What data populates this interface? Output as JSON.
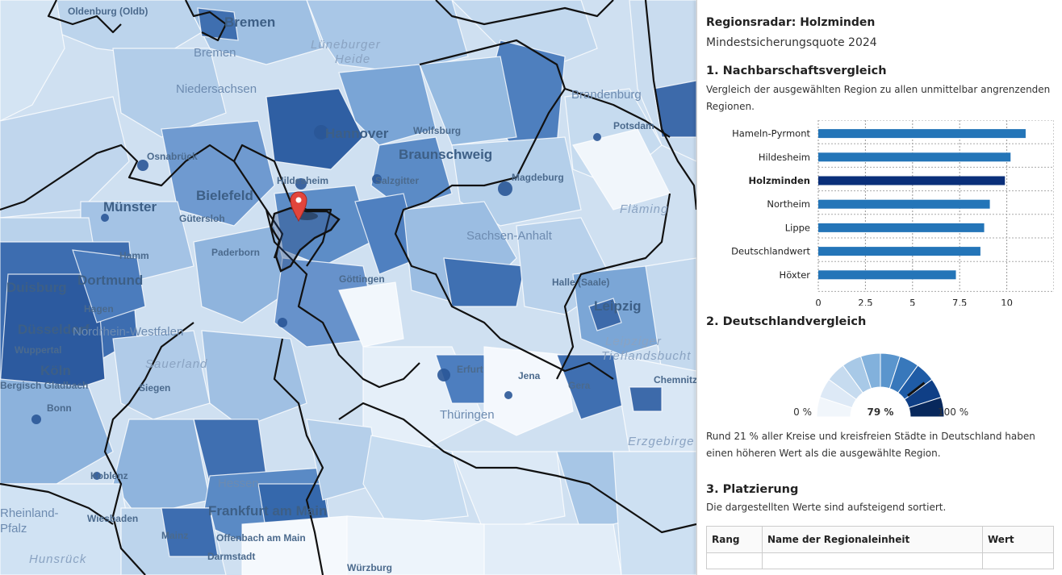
{
  "map": {
    "labels": {
      "oldenburg": "Oldenburg (Oldb)",
      "bremen_top": "Bremen",
      "bremen": "Bremen",
      "lueneburger": "Lüneburger",
      "heide": "Heide",
      "niedersachsen": "Niedersachsen",
      "brandenburg": "Brandenburg",
      "hannover": "Hannover",
      "wolfsburg": "Wolfsburg",
      "braunschweig": "Braunschweig",
      "osnabrueck": "Osnabrück",
      "hildesheim": "Hildesheim",
      "salzgitter": "Salzgitter",
      "magdeburg": "Magdeburg",
      "potsdam": "Potsdam",
      "bielefeld": "Bielefeld",
      "muenster": "Münster",
      "guetersloh": "Gütersloh",
      "flaming": "Fläming",
      "sachsen_anhalt": "Sachsen-Anhalt",
      "hamm": "Hamm",
      "paderborn": "Paderborn",
      "duisburg": "Duisburg",
      "dortmund": "Dortmund",
      "goettingen": "Göttingen",
      "halle": "Halle (Saale)",
      "hagen": "Hagen",
      "leipzig": "Leipzig",
      "duesseldorf": "Düsseldorf",
      "nrw": "Nordrhein-Westfalen",
      "wuppertal": "Wuppertal",
      "leipziger": "Leipziger",
      "tieflandsbucht": "Tieflandsbucht",
      "sauerland": "Sauerland",
      "koeln": "Köln",
      "erfurt": "Erfurt",
      "jena": "Jena",
      "bergisch": "Bergisch Gladbach",
      "siegen": "Siegen",
      "gera": "Gera",
      "chemnitz": "Chemnitz",
      "bonn": "Bonn",
      "thueringen": "Thüringen",
      "erzgebirge": "Erzgebirge",
      "koblenz": "Koblenz",
      "hessen": "Hessen",
      "frankfurt": "Frankfurt am Main",
      "wiesbaden": "Wiesbaden",
      "mainz": "Mainz",
      "offenbach": "Offenbach am Main",
      "rheinland": "Rheinland-",
      "pfalz": "Pfalz",
      "darmstadt": "Darmstadt",
      "hunsrueck": "Hunsrück",
      "wuerzburg": "Würzburg"
    }
  },
  "panel": {
    "title": "Regionsradar: Holzminden",
    "subtitle": "Mindestsicherungsquote 2024",
    "section1": {
      "heading": "1. Nachbarschaftsvergleich",
      "description": "Vergleich der ausgewählten Region zu allen unmittelbar angrenzenden Regionen."
    },
    "section2": {
      "heading": "2. Deutschlandvergleich",
      "description": "Rund 21 % aller Kreise und kreisfreien Städte in Deutschland haben einen höheren Wert als die ausgewählte Region.",
      "gauge": {
        "value_percent": 79,
        "min_label": "0 %",
        "max_label": "100 %",
        "value_label": "79 %"
      }
    },
    "section3": {
      "heading": "3. Platzierung",
      "description": "Die dargestellten Werte sind aufsteigend sortiert.",
      "columns": [
        "Rang",
        "Name der Regionaleinheit",
        "Wert"
      ]
    }
  },
  "chart_data": {
    "type": "bar",
    "orientation": "horizontal",
    "categories": [
      "Hameln-Pyrmont",
      "Hildesheim",
      "Holzminden",
      "Northeim",
      "Lippe",
      "Deutschlandwert",
      "Höxter"
    ],
    "values": [
      11.0,
      10.2,
      9.9,
      9.1,
      8.8,
      8.6,
      7.3
    ],
    "highlight": "Holzminden",
    "xlim": [
      0,
      12.5
    ],
    "xticks": [
      "0",
      "2,5",
      "5",
      "7,5",
      "10"
    ],
    "grid": true,
    "colors": {
      "bar": "#2475b8",
      "highlight": "#0a2f7a"
    }
  }
}
